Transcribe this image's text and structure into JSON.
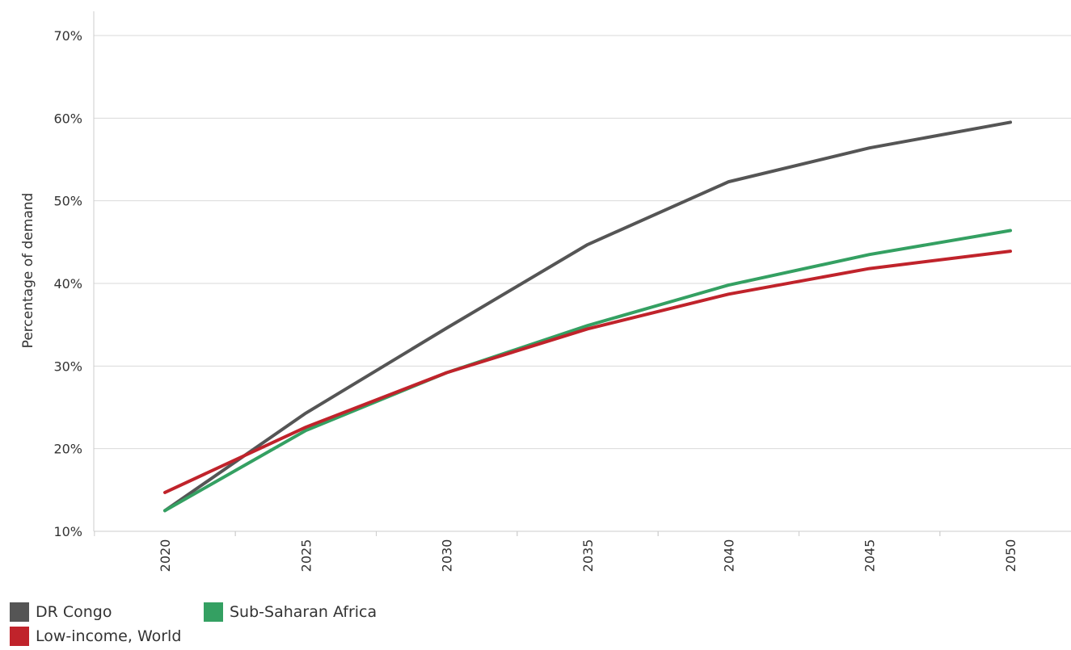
{
  "chart_data": {
    "type": "line",
    "title": "",
    "xlabel": "",
    "ylabel": "Percentage of demand",
    "x": [
      2020,
      2025,
      2030,
      2035,
      2040,
      2045,
      2050
    ],
    "x_tick_labels": [
      "2020",
      "2025",
      "2030",
      "2035",
      "2040",
      "2045",
      "2050"
    ],
    "ylim": [
      10,
      70
    ],
    "y_ticks": [
      10,
      20,
      30,
      40,
      50,
      60,
      70
    ],
    "y_tick_labels": [
      "10%",
      "20%",
      "30%",
      "40%",
      "50%",
      "60%",
      "70%"
    ],
    "grid": "horizontal",
    "legend_position": "bottom-left",
    "series": [
      {
        "name": "DR Congo",
        "color": "#555555",
        "values": [
          12.5,
          24.3,
          34.6,
          44.7,
          52.3,
          56.4,
          59.5
        ]
      },
      {
        "name": "Sub-Saharan Africa",
        "color": "#34a062",
        "values": [
          12.5,
          22.2,
          29.2,
          34.9,
          39.8,
          43.5,
          46.4
        ]
      },
      {
        "name": "Low-income, World",
        "color": "#c0232b",
        "values": [
          14.7,
          22.6,
          29.2,
          34.5,
          38.7,
          41.8,
          43.9
        ]
      }
    ]
  }
}
